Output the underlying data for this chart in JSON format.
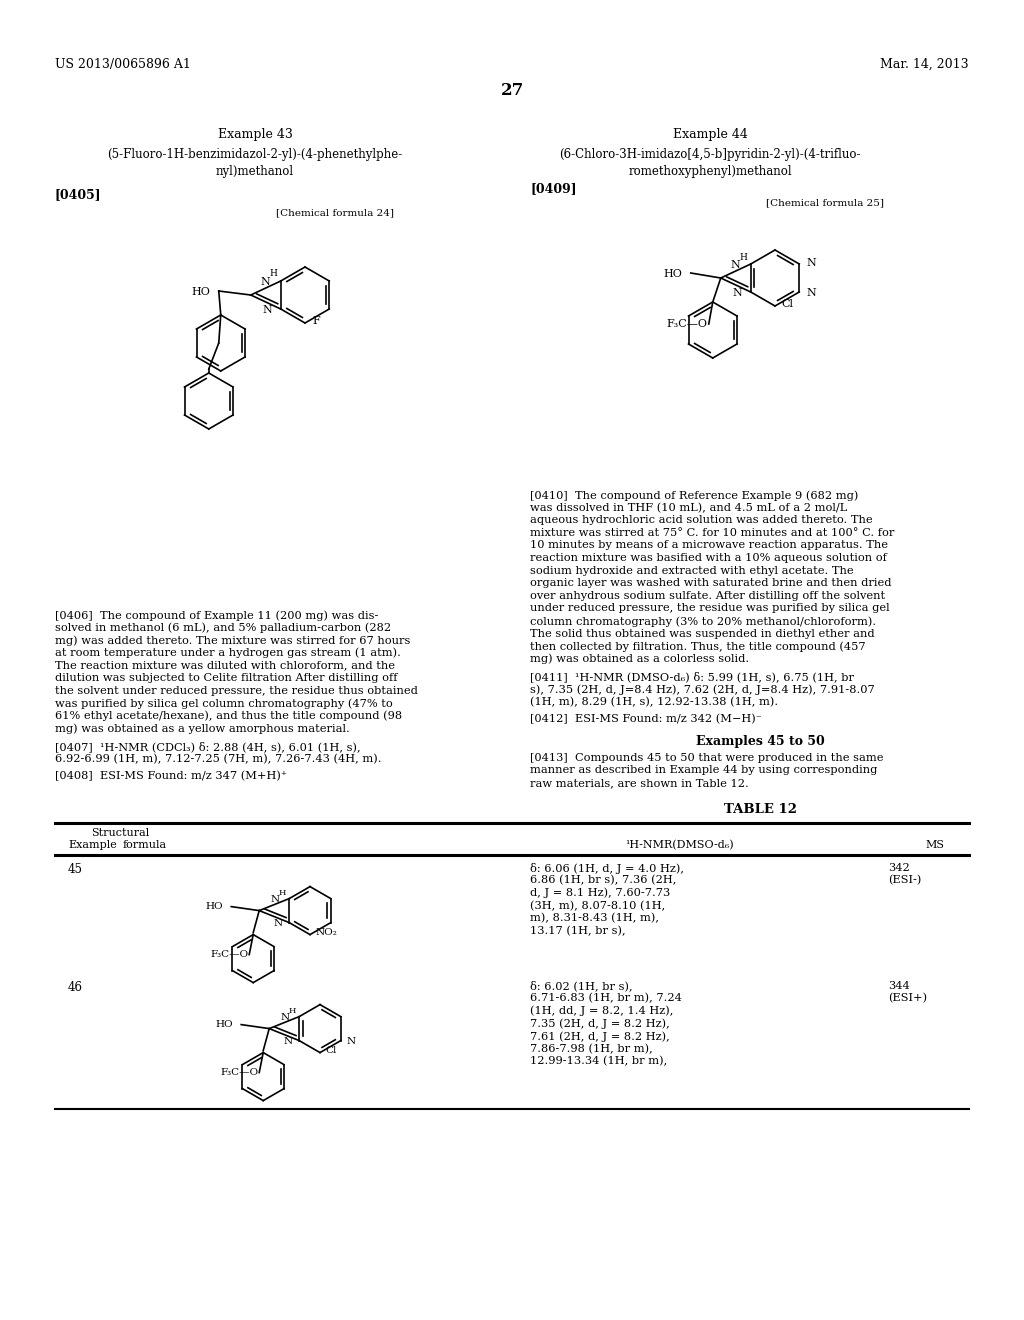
{
  "background_color": "#ffffff",
  "page_number": "27",
  "header_left": "US 2013/0065896 A1",
  "header_right": "Mar. 14, 2013",
  "example43_title": "Example 43",
  "example43_line1": "(5-Fluoro-1H-benzimidazol-2-yl)-(4-phenethylphe-",
  "example43_line2": "nyl)methanol",
  "example43_para": "[0405]",
  "chem_formula24_label": "[Chemical formula 24]",
  "example44_title": "Example 44",
  "example44_line1": "(6-Chloro-3H-imidazo[4,5-b]pyridin-2-yl)-(4-trifluo-",
  "example44_line2": "romethoxyphenyl)methanol",
  "example44_para": "[0409]",
  "chem_formula25_label": "[Chemical formula 25]",
  "para0406_lines": [
    "[0406]  The compound of Example 11 (200 mg) was dis-",
    "solved in methanol (6 mL), and 5% palladium-carbon (282",
    "mg) was added thereto. The mixture was stirred for 67 hours",
    "at room temperature under a hydrogen gas stream (1 atm).",
    "The reaction mixture was diluted with chloroform, and the",
    "dilution was subjected to Celite filtration After distilling off",
    "the solvent under reduced pressure, the residue thus obtained",
    "was purified by silica gel column chromatography (47% to",
    "61% ethyl acetate/hexane), and thus the title compound (98",
    "mg) was obtained as a yellow amorphous material."
  ],
  "para0407_lines": [
    "[0407]  ¹H-NMR (CDCl₃) δ: 2.88 (4H, s), 6.01 (1H, s),",
    "6.92-6.99 (1H, m), 7.12-7.25 (7H, m), 7.26-7.43 (4H, m)."
  ],
  "para0408": "[0408]  ESI-MS Found: m/z 347 (M+H)⁺",
  "para0410_lines": [
    "[0410]  The compound of Reference Example 9 (682 mg)",
    "was dissolved in THF (10 mL), and 4.5 mL of a 2 mol/L",
    "aqueous hydrochloric acid solution was added thereto. The",
    "mixture was stirred at 75° C. for 10 minutes and at 100° C. for",
    "10 minutes by means of a microwave reaction apparatus. The",
    "reaction mixture was basified with a 10% aqueous solution of",
    "sodium hydroxide and extracted with ethyl acetate. The",
    "organic layer was washed with saturated brine and then dried",
    "over anhydrous sodium sulfate. After distilling off the solvent",
    "under reduced pressure, the residue was purified by silica gel",
    "column chromatography (3% to 20% methanol/chloroform).",
    "The solid thus obtained was suspended in diethyl ether and",
    "then collected by filtration. Thus, the title compound (457",
    "mg) was obtained as a colorless solid."
  ],
  "para0411_lines": [
    "[0411]  ¹H-NMR (DMSO-d₆) δ: 5.99 (1H, s), 6.75 (1H, br",
    "s), 7.35 (2H, d, J=8.4 Hz), 7.62 (2H, d, J=8.4 Hz), 7.91-8.07",
    "(1H, m), 8.29 (1H, s), 12.92-13.38 (1H, m)."
  ],
  "para0412": "[0412]  ESI-MS Found: m/z 342 (M−H)⁻",
  "examples45to50_title": "Examples 45 to 50",
  "para0413_lines": [
    "[0413]  Compounds 45 to 50 that were produced in the same",
    "manner as described in Example 44 by using corresponding",
    "raw materials, are shown in Table 12."
  ],
  "table12_title": "TABLE 12",
  "table_col1a": "Structural",
  "table_col1b": "Example  formula",
  "table_col2": "¹H-NMR(DMSO-d₆)",
  "table_col3": "MS",
  "ex45_num": "45",
  "ex45_nmr": [
    "δ: 6.06 (1H, d, J = 4.0 Hz),",
    "6.86 (1H, br s), 7.36 (2H,",
    "d, J = 8.1 Hz), 7.60-7.73",
    "(3H, m), 8.07-8.10 (1H,",
    "m), 8.31-8.43 (1H, m),",
    "13.17 (1H, br s),"
  ],
  "ex45_ms": [
    "342",
    "(ESI-)"
  ],
  "ex46_num": "46",
  "ex46_nmr": [
    "δ: 6.02 (1H, br s),",
    "6.71-6.83 (1H, br m), 7.24",
    "(1H, dd, J = 8.2, 1.4 Hz),",
    "7.35 (2H, d, J = 8.2 Hz),",
    "7.61 (2H, d, J = 8.2 Hz),",
    "7.86-7.98 (1H, br m),",
    "12.99-13.34 (1H, br m),"
  ],
  "ex46_ms": [
    "344",
    "(ESI+)"
  ]
}
